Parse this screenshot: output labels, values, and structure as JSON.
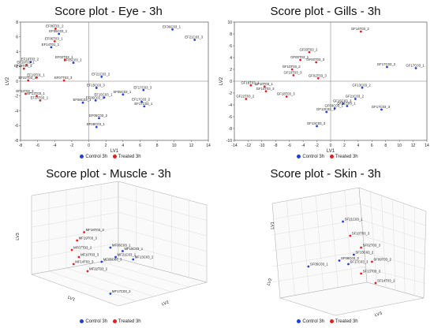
{
  "legend": {
    "control": "Control 3h",
    "treated": "Treated 3h"
  },
  "colors": {
    "control": "#1f3fd6",
    "treated": "#e02020"
  },
  "chart_data": [
    {
      "type": "scatter",
      "title": "Score plot - Eye - 3h",
      "xlabel": "LV1",
      "ylabel": "LV2",
      "xlim": [
        -8,
        14
      ],
      "ylim": [
        -8,
        8
      ],
      "xticks": [
        -8,
        -6,
        -4,
        -2,
        0,
        2,
        4,
        6,
        8,
        10,
        12,
        14
      ],
      "yticks": [
        -8,
        -6,
        -4,
        -2,
        0,
        2,
        4,
        6,
        8
      ],
      "series": [
        {
          "name": "Control 3h",
          "points": [
            {
              "x": 9.8,
              "y": 7.0,
              "label": "EF06C03_1"
            },
            {
              "x": 12.4,
              "y": 5.6,
              "label": "EF21C03_3"
            },
            {
              "x": -3.5,
              "y": 6.4,
              "label": "EF05C03_1"
            },
            {
              "x": -4.4,
              "y": 4.6,
              "label": "EF14T01_1"
            },
            {
              "x": -1.8,
              "y": 2.5,
              "label": "EF05C03_2"
            },
            {
              "x": -6.8,
              "y": 2.6,
              "label": "EF18T03_2"
            },
            {
              "x": 1.5,
              "y": 0.6,
              "label": "EF21C03_2"
            },
            {
              "x": 0.9,
              "y": -0.9,
              "label": "EF15C03_3"
            },
            {
              "x": 6.4,
              "y": -1.2,
              "label": "EF17C03_3"
            },
            {
              "x": 4.0,
              "y": -1.8,
              "label": "SF05C03_1"
            },
            {
              "x": 0.8,
              "y": -2.6,
              "label": "EF06C03_1"
            },
            {
              "x": 6.2,
              "y": -2.8,
              "label": "EF17C03_2"
            },
            {
              "x": 6.5,
              "y": -3.4,
              "label": "EF17C03_1"
            },
            {
              "x": -0.7,
              "y": -2.9,
              "label": "EF08C03_1"
            },
            {
              "x": 1.8,
              "y": -2.2,
              "label": "EF15C03_1"
            },
            {
              "x": 1.2,
              "y": -5.0,
              "label": "EF05C03_2"
            },
            {
              "x": 0.9,
              "y": -6.2,
              "label": "EF08C03_1"
            }
          ]
        },
        {
          "name": "Treated 3h",
          "points": [
            {
              "x": -3.9,
              "y": 7.1,
              "label": "EF06T01_2"
            },
            {
              "x": -4.0,
              "y": 5.4,
              "label": "EF06T03_1"
            },
            {
              "x": -2.8,
              "y": 2.9,
              "label": "EF02T03_1"
            },
            {
              "x": -7.3,
              "y": 2.2,
              "label": "EF19T03_1"
            },
            {
              "x": -7.6,
              "y": 1.7,
              "label": "EF18T03_3"
            },
            {
              "x": -6.1,
              "y": 0.5,
              "label": "EF19T01_1"
            },
            {
              "x": -7.1,
              "y": 0.1,
              "label": "EF22T03_2"
            },
            {
              "x": -2.9,
              "y": 0.1,
              "label": "EF07T03_3"
            },
            {
              "x": -7.4,
              "y": -1.7,
              "label": "EF11T03_3"
            },
            {
              "x": -6.1,
              "y": -2.0,
              "label": "EF13T03_1"
            },
            {
              "x": -5.7,
              "y": -2.6,
              "label": "EF14T03_1"
            }
          ]
        }
      ]
    },
    {
      "type": "scatter",
      "title": "Score plot - Gills - 3h",
      "xlabel": "LV1",
      "ylabel": "LV2",
      "xlim": [
        -14,
        14
      ],
      "ylim": [
        -10,
        10
      ],
      "xticks": [
        -14,
        -12,
        -10,
        -8,
        -6,
        -4,
        -2,
        0,
        2,
        4,
        6,
        8,
        10,
        12,
        14
      ],
      "yticks": [
        -10,
        -8,
        -6,
        -4,
        -2,
        0,
        2,
        4,
        6,
        8,
        10
      ],
      "series": [
        {
          "name": "Control 3h",
          "points": [
            {
              "x": 12.4,
              "y": 2.2,
              "label": "GF17C03_1"
            },
            {
              "x": 8.2,
              "y": 2.4,
              "label": "GF17C03_2"
            },
            {
              "x": 4.6,
              "y": -1.1,
              "label": "GF13C03_2"
            },
            {
              "x": 3.6,
              "y": -3.0,
              "label": "GF21C03_2"
            },
            {
              "x": 7.4,
              "y": -4.8,
              "label": "GF17C03_3"
            },
            {
              "x": 0.6,
              "y": -4.6,
              "label": "GF03C03_1"
            },
            {
              "x": -0.6,
              "y": -5.2,
              "label": "GF13C03_1"
            },
            {
              "x": -2.0,
              "y": -7.6,
              "label": "GF13C03_3"
            },
            {
              "x": 1.8,
              "y": -3.8,
              "label": "GF15C03_3"
            },
            {
              "x": 2.4,
              "y": -4.2,
              "label": "GF21C03_1"
            }
          ]
        },
        {
          "name": "Treated 3h",
          "points": [
            {
              "x": 4.4,
              "y": 8.4,
              "label": "GF14T03_2"
            },
            {
              "x": -3.1,
              "y": 4.9,
              "label": "GF03T03_2"
            },
            {
              "x": -4.4,
              "y": 3.6,
              "label": "GF00T03_1"
            },
            {
              "x": -2.1,
              "y": 3.2,
              "label": "GF00T03_3"
            },
            {
              "x": -5.6,
              "y": 2.0,
              "label": "GF10T03_2"
            },
            {
              "x": -5.4,
              "y": 1.0,
              "label": "GF10T03_3"
            },
            {
              "x": -1.8,
              "y": 0.5,
              "label": "GF02T03_3"
            },
            {
              "x": -11.6,
              "y": -0.7,
              "label": "GF18T03_1"
            },
            {
              "x": -9.6,
              "y": -0.9,
              "label": "GF10T03_1"
            },
            {
              "x": -9.4,
              "y": -1.7,
              "label": "GF14T03_3"
            },
            {
              "x": -12.3,
              "y": -3.0,
              "label": "GF22T03_2"
            },
            {
              "x": -6.4,
              "y": -2.6,
              "label": "GF18T03_3"
            }
          ]
        }
      ]
    },
    {
      "type": "scatter",
      "title": "Score plot - Muscle - 3h",
      "xlabel": "LV1",
      "ylabel": "LV3",
      "zlabel": "LV2",
      "series": [
        {
          "name": "Control 3h",
          "points": [
            {
              "label": "MF17C03_2",
              "u": 0.45,
              "v": 0.83
            },
            {
              "label": "MF15C03_1",
              "u": 0.52,
              "v": 0.47
            },
            {
              "label": "MF21C03_1",
              "u": 0.48,
              "v": 0.52
            },
            {
              "label": "MF05C03_3",
              "u": 0.4,
              "v": 0.56
            },
            {
              "label": "MF13C03_2",
              "u": 0.58,
              "v": 0.54
            },
            {
              "label": "MF06C03_1",
              "u": 0.45,
              "v": 0.44
            }
          ]
        },
        {
          "name": "Treated 3h",
          "points": [
            {
              "label": "MF18T03_3",
              "u": 0.3,
              "v": 0.31
            },
            {
              "label": "MF19T03_3",
              "u": 0.26,
              "v": 0.38
            },
            {
              "label": "MF07T03_2",
              "u": 0.23,
              "v": 0.46
            },
            {
              "label": "MF10T03_3",
              "u": 0.27,
              "v": 0.52
            },
            {
              "label": "MF14T03_3",
              "u": 0.24,
              "v": 0.58
            },
            {
              "label": "MF22T03_2",
              "u": 0.32,
              "v": 0.64
            }
          ]
        }
      ]
    },
    {
      "type": "scatter",
      "title": "Score plot - Skin - 3h",
      "xlabel": "LV3",
      "ylabel": "LV1",
      "zlabel": "LV2",
      "series": [
        {
          "name": "Control 3h",
          "points": [
            {
              "label": "SF21C03_1",
              "u": 0.52,
              "v": 0.22
            },
            {
              "label": "SF05C03_1",
              "u": 0.33,
              "v": 0.6
            },
            {
              "label": "SF13C03_2",
              "u": 0.58,
              "v": 0.5
            },
            {
              "label": "SF17C03_3",
              "u": 0.55,
              "v": 0.58
            },
            {
              "label": "SF06C03_2",
              "u": 0.5,
              "v": 0.55
            }
          ]
        },
        {
          "name": "Treated 3h",
          "points": [
            {
              "label": "SF10T03_3",
              "u": 0.56,
              "v": 0.34
            },
            {
              "label": "SF02T03_3",
              "u": 0.62,
              "v": 0.44
            },
            {
              "label": "SF09T03_2",
              "u": 0.68,
              "v": 0.56
            },
            {
              "label": "SF13T03_3",
              "u": 0.62,
              "v": 0.66
            },
            {
              "label": "SF14T03_2",
              "u": 0.7,
              "v": 0.74
            }
          ]
        }
      ]
    }
  ]
}
